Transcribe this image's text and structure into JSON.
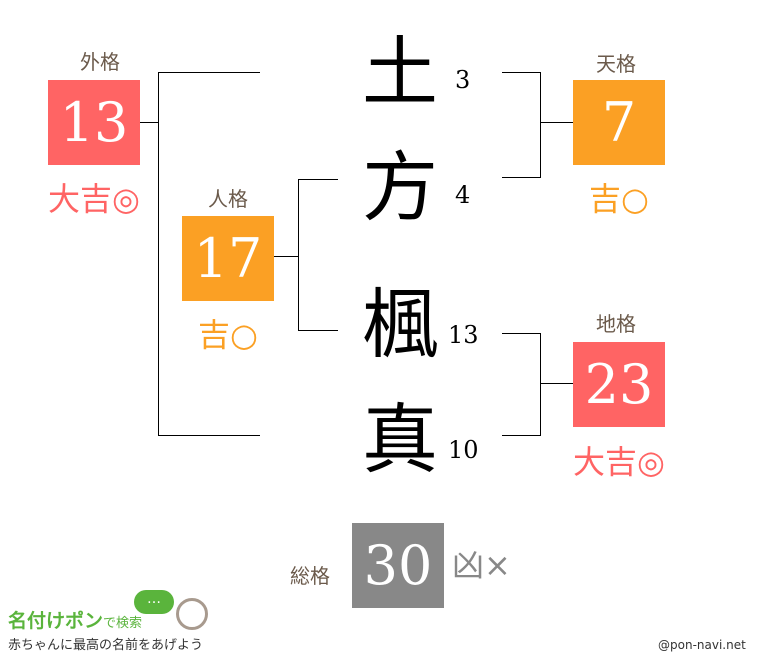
{
  "colors": {
    "daikichi": "#ff6464",
    "kichi": "#fba024",
    "kyo": "#888888",
    "label": "#6b5a4b"
  },
  "name": {
    "chars": [
      {
        "char": "土",
        "strokes": "3"
      },
      {
        "char": "方",
        "strokes": "4"
      },
      {
        "char": "楓",
        "strokes": "13"
      },
      {
        "char": "真",
        "strokes": "10"
      }
    ]
  },
  "gaikaku": {
    "label": "外格",
    "value": "13",
    "result": "大吉◎"
  },
  "jinkaku": {
    "label": "人格",
    "value": "17",
    "result": "吉○"
  },
  "tenkaku": {
    "label": "天格",
    "value": "7",
    "result": "吉○"
  },
  "chikaku": {
    "label": "地格",
    "value": "23",
    "result": "大吉◎"
  },
  "soukaku": {
    "label": "総格",
    "value": "30",
    "result": "凶×"
  },
  "logo": {
    "title": "名付けポン",
    "suffix": "で検索",
    "tagline": "赤ちゃんに最高の名前をあげよう",
    "bubble": "…"
  },
  "credit": "@pon-navi.net"
}
